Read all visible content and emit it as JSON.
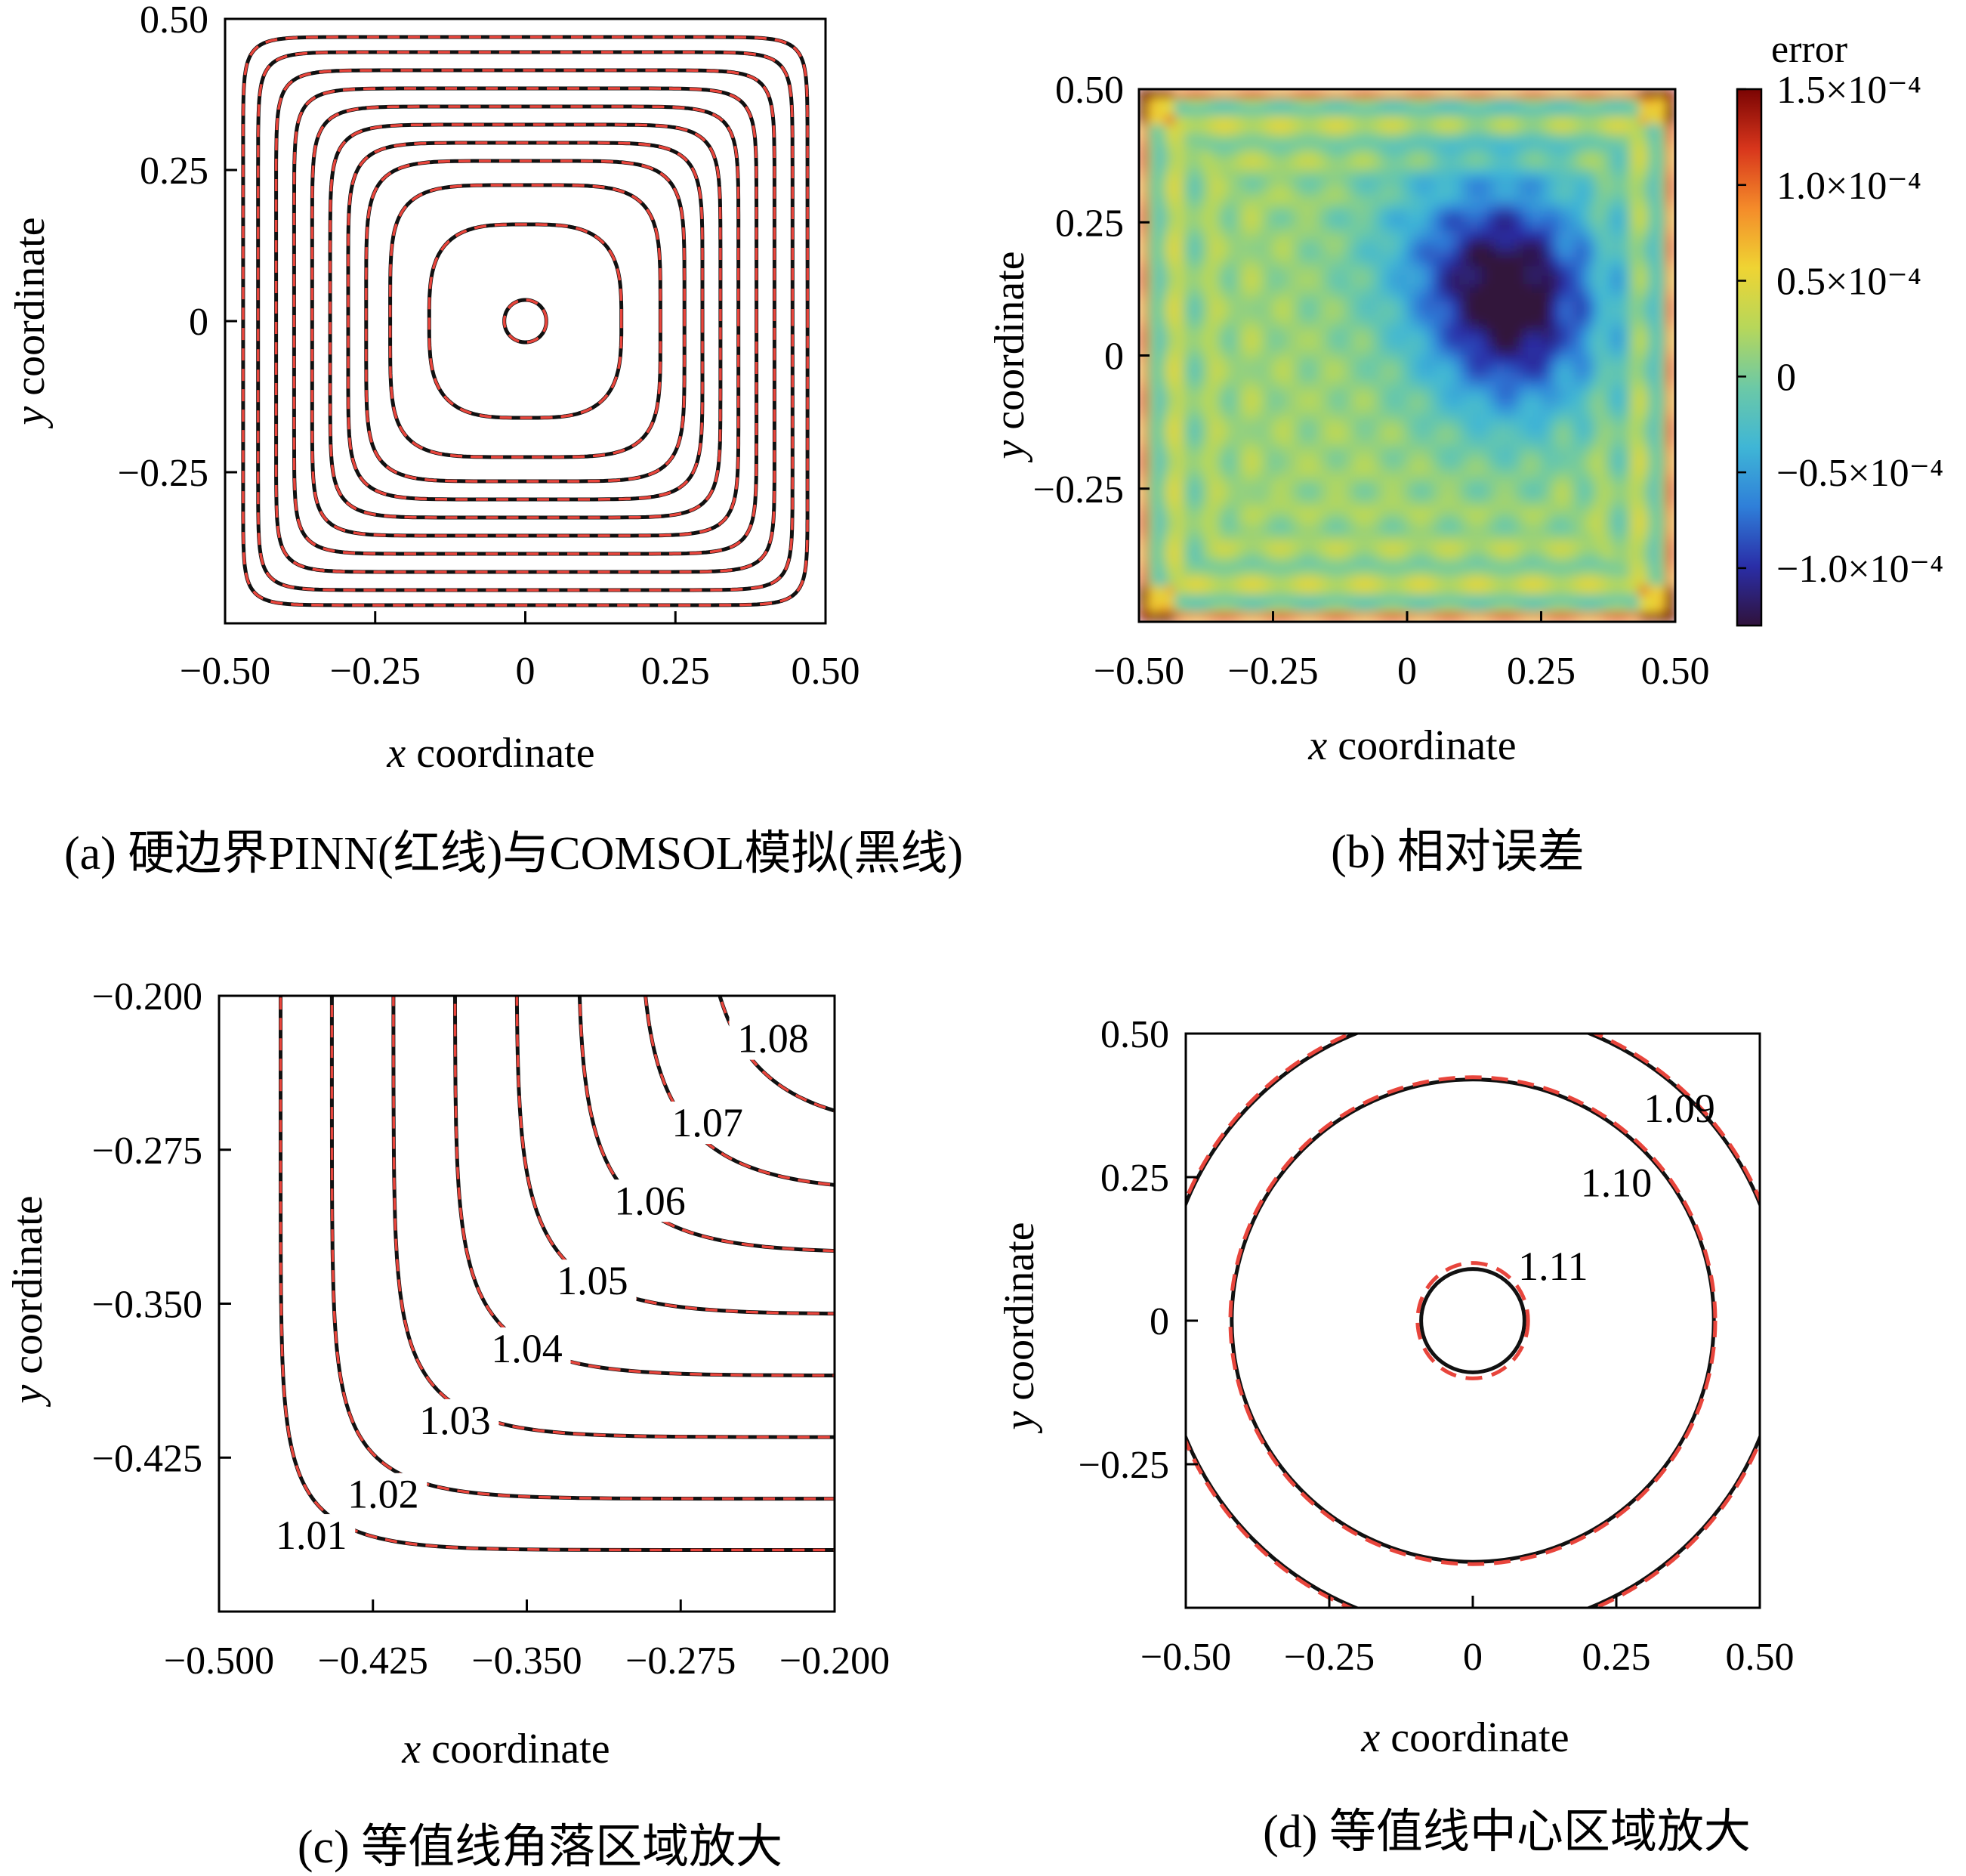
{
  "colors": {
    "comsol": "#111111",
    "pinn": "#e8453c",
    "frame": "#000000"
  },
  "chart_data": [
    {
      "panel": "a",
      "type": "contour",
      "caption": "(a) 硬边界PINN(红线)与COMSOL模拟(黑线)",
      "xlabel_var": "x",
      "xlabel_rest": " coordinate",
      "ylabel_var": "y",
      "ylabel_rest": " coordinate",
      "xlim": [
        -0.5,
        0.5
      ],
      "ylim": [
        -0.5,
        0.5
      ],
      "xticks": [
        -0.5,
        -0.25,
        0,
        0.25,
        0.5
      ],
      "xtick_labels": [
        "−0.50",
        "−0.25",
        "0",
        "0.25",
        "0.50"
      ],
      "yticks": [
        0.5,
        0.25,
        0,
        -0.25
      ],
      "ytick_labels": [
        "0.50",
        "0.25",
        "0",
        "−0.25"
      ],
      "contour_half_widths": [
        0.035,
        0.16,
        0.225,
        0.265,
        0.295,
        0.325,
        0.355,
        0.385,
        0.415,
        0.445,
        0.47
      ],
      "series": [
        {
          "name": "硬边界PINN",
          "style": "dashed red"
        },
        {
          "name": "COMSOL模拟",
          "style": "solid black"
        }
      ]
    },
    {
      "panel": "b",
      "type": "heatmap",
      "caption": "(b) 相对误差",
      "xlabel_var": "x",
      "xlabel_rest": " coordinate",
      "ylabel_var": "y",
      "ylabel_rest": " coordinate",
      "xlim": [
        -0.5,
        0.5
      ],
      "ylim": [
        -0.5,
        0.5
      ],
      "xticks": [
        -0.5,
        -0.25,
        0,
        0.25,
        0.5
      ],
      "xtick_labels": [
        "−0.50",
        "−0.25",
        "0",
        "0.25",
        "0.50"
      ],
      "yticks": [
        0.5,
        0.25,
        0,
        -0.25
      ],
      "ytick_labels": [
        "0.50",
        "0.25",
        "0",
        "−0.25"
      ],
      "colorbar": {
        "title": "error",
        "range": [
          -0.00013,
          0.00015
        ],
        "ticks": [
          0.00015,
          0.0001,
          5e-05,
          0,
          -5e-05,
          -0.0001
        ],
        "tick_labels": [
          "1.5×10⁻⁴",
          "1.0×10⁻⁴",
          "0.5×10⁻⁴",
          "0",
          "−0.5×10⁻⁴",
          "−1.0×10⁻⁴"
        ],
        "colormap": [
          "#30123b",
          "#2a2ea8",
          "#2f7fd9",
          "#3fb6d6",
          "#6cc9a6",
          "#b7d75a",
          "#efd433",
          "#f48b2a",
          "#d8361c",
          "#7a0403"
        ]
      },
      "field": {
        "description_values": "negative trough centered near (0.2, 0.1); positive bands along the square boundary",
        "trough_center": [
          0.2,
          0.1
        ],
        "trough_min": -0.00013,
        "edge_max": 0.00015,
        "background": 1.5e-05
      }
    },
    {
      "panel": "c",
      "type": "contour",
      "caption": "(c) 等值线角落区域放大",
      "xlabel_var": "x",
      "xlabel_rest": " coordinate",
      "ylabel_var": "y",
      "ylabel_rest": " coordinate",
      "xlim": [
        -0.5,
        -0.2
      ],
      "ylim": [
        -0.5,
        -0.2
      ],
      "xticks": [
        -0.5,
        -0.425,
        -0.35,
        -0.275,
        -0.2
      ],
      "xtick_labels": [
        "−0.500",
        "−0.425",
        "−0.350",
        "−0.275",
        "−0.200"
      ],
      "yticks": [
        -0.2,
        -0.275,
        -0.35,
        -0.425
      ],
      "ytick_labels": [
        "−0.200",
        "−0.275",
        "−0.350",
        "−0.425"
      ],
      "contour_levels": [
        "1.01",
        "1.02",
        "1.03",
        "1.04",
        "1.05",
        "1.06",
        "1.07",
        "1.08"
      ],
      "contour_half_widths": [
        0.47,
        0.445,
        0.415,
        0.385,
        0.355,
        0.325,
        0.295,
        0.265,
        0.225
      ]
    },
    {
      "panel": "d",
      "type": "contour",
      "caption": "(d) 等值线中心区域放大",
      "xlabel_var": "x",
      "xlabel_rest": " coordinate",
      "ylabel_var": "y",
      "ylabel_rest": " coordinate",
      "xlim": [
        -0.5,
        0.5
      ],
      "ylim": [
        -0.5,
        0.5
      ],
      "xticks": [
        -0.5,
        -0.25,
        0,
        0.25,
        0.5
      ],
      "xtick_labels": [
        "−0.50",
        "−0.25",
        "0",
        "0.25",
        "0.50"
      ],
      "yticks": [
        0.5,
        0.25,
        0,
        -0.25
      ],
      "ytick_labels": [
        "0.50",
        "0.25",
        "0",
        "−0.25"
      ],
      "contour_levels": [
        "1.09",
        "1.10",
        "1.11"
      ],
      "contour_radii": [
        0.54,
        0.42,
        0.09
      ]
    }
  ]
}
